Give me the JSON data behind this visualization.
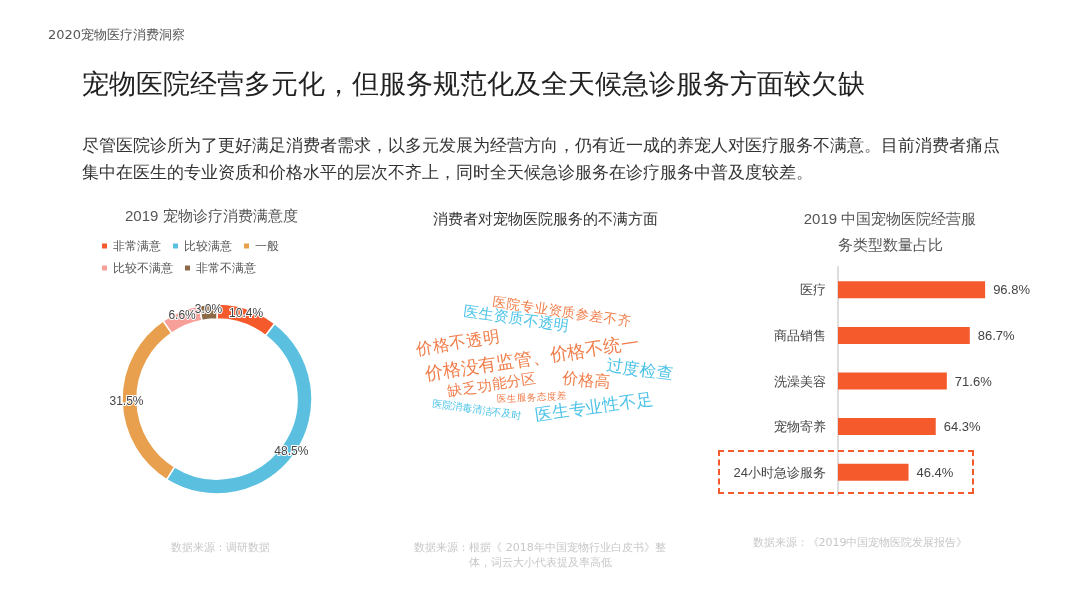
{
  "chart_data": [
    {
      "type": "other",
      "title": "宠物医院经营多元化，但服务规范化及全天候急诊服务方面较欠缺",
      "subtitle": "尽管医院诊所为了更好满足消费者需求，以多元发展为经营方向，仍有近一成的养宠人对医疗服务不满意。目前消费者痛点集中在医生的专业资质和价格水平的层次不齐上，同时全天候急诊服务在诊疗服务中普及度较差。",
      "annotations": [
        "2020宠物医疗消费洞察"
      ]
    },
    {
      "type": "donut",
      "title": "2019 宠物诊疗消费满意度",
      "categories": [
        "非常满意",
        "比较满意",
        "一般",
        "比较不满意",
        "非常不满意"
      ],
      "values": [
        10.4,
        48.5,
        31.5,
        6.6,
        3.0
      ],
      "value_labels": [
        "10.4%",
        "48.5%",
        "31.5%",
        "6.6%",
        "3.0%"
      ],
      "colors": [
        "#f55a2c",
        "#5bc0e0",
        "#e8a04e",
        "#f7a09a",
        "#8c6a45"
      ],
      "legend": "top",
      "annotations": [
        "数据来源：调研数据"
      ]
    },
    {
      "type": "other",
      "title": "消费者对宠物医院服务的不满方面",
      "annotations": [
        "医院专业资质参差不齐",
        "医生资质不透明",
        "价格不透明",
        "价格没有监管、价格不统一",
        "过度检查",
        "缺乏功能分区",
        "价格高",
        "医生服务态度差",
        "医院消毒清洁不及时",
        "医生专业性不足",
        "数据来源：根据《 2018年中国宠物行业白皮书》整体，词云大小代表提及率高低"
      ],
      "colors": [
        "#f07d4a",
        "#4dc3e8",
        "#f07d4a",
        "#f07d4a",
        "#4dc3e8",
        "#f07d4a",
        "#f07d4a",
        "#f07d4a",
        "#4dc3e8",
        "#4dc3e8"
      ]
    },
    {
      "type": "bar",
      "orientation": "horizontal",
      "title": "2019 中国宠物医院经营服务类型数量占比",
      "categories": [
        "医疗",
        "商品销售",
        "洗澡美容",
        "宠物寄养",
        "24小时急诊服务"
      ],
      "values": [
        96.8,
        86.7,
        71.6,
        64.3,
        46.4
      ],
      "value_labels": [
        "96.8%",
        "86.7%",
        "71.6%",
        "64.3%",
        "46.4%"
      ],
      "color": "#f55a2c",
      "annotations": [
        "数据来源：《2019中国宠物医院发展报告》"
      ]
    }
  ]
}
